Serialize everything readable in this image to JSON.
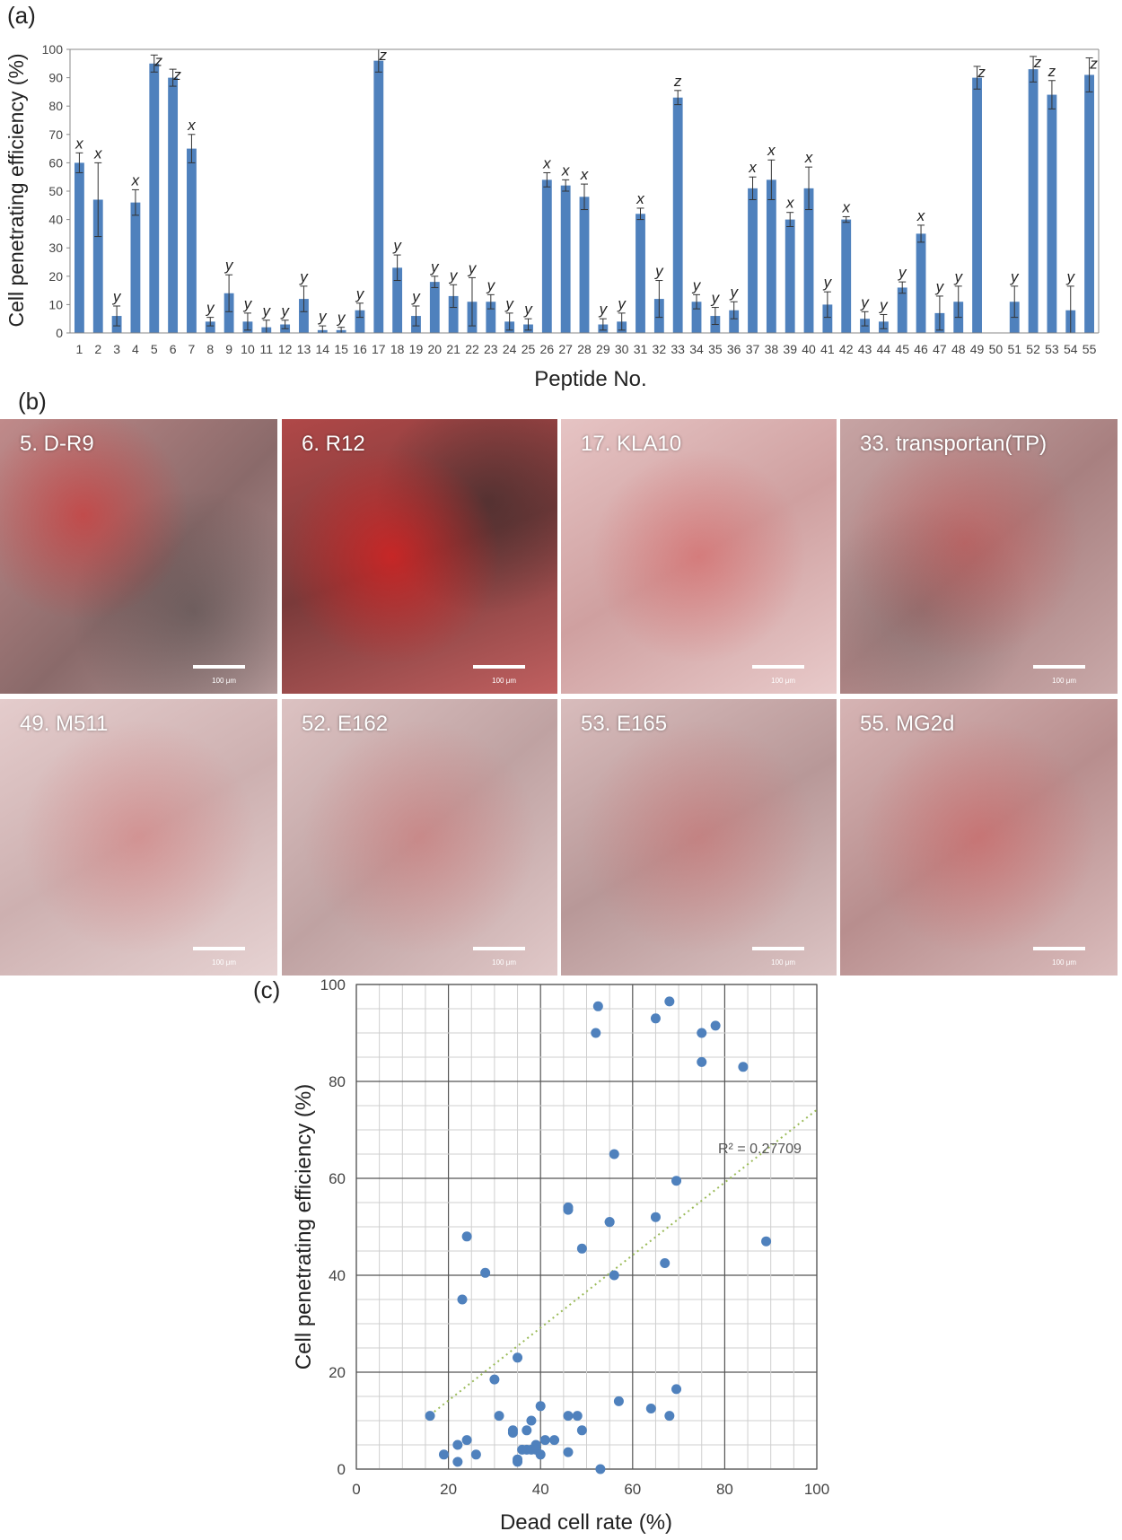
{
  "panels": {
    "a": "(a)",
    "b": "(b)",
    "c": "(c)"
  },
  "chart_data": [
    {
      "type": "bar",
      "id": "panel-a",
      "title": "",
      "xlabel": "Peptide No.",
      "ylabel": "Cell penetrating efficiency (%)",
      "ylim": [
        0,
        100
      ],
      "yticks": [
        "0",
        "10",
        "20",
        "30",
        "40",
        "50",
        "60",
        "70",
        "80",
        "90",
        "100"
      ],
      "grid": false,
      "color": "#4f81bd",
      "categories": [
        "1",
        "2",
        "3",
        "4",
        "5",
        "6",
        "7",
        "8",
        "9",
        "10",
        "11",
        "12",
        "13",
        "14",
        "15",
        "16",
        "17",
        "18",
        "19",
        "20",
        "21",
        "22",
        "23",
        "24",
        "25",
        "26",
        "27",
        "28",
        "29",
        "30",
        "31",
        "32",
        "33",
        "34",
        "35",
        "36",
        "37",
        "38",
        "39",
        "40",
        "41",
        "42",
        "43",
        "44",
        "45",
        "46",
        "47",
        "48",
        "49",
        "50",
        "51",
        "52",
        "53",
        "54",
        "55"
      ],
      "values": [
        60,
        47,
        6,
        46,
        95,
        90,
        65,
        4,
        14,
        4,
        2,
        3,
        12,
        1,
        1,
        8,
        96,
        23,
        6,
        18,
        13,
        11,
        11,
        4,
        3,
        54,
        52,
        48,
        3,
        4,
        42,
        12,
        83,
        11,
        6,
        8,
        51,
        54,
        40,
        51,
        10,
        40,
        5,
        4,
        16,
        35,
        7,
        11,
        90,
        0,
        11,
        93,
        84,
        8,
        91
      ],
      "errors": [
        3.5,
        13,
        3.5,
        4.5,
        3,
        3,
        5,
        1.5,
        6.5,
        3,
        2.5,
        1.5,
        4.5,
        1.5,
        1,
        2.5,
        4,
        4.5,
        3.5,
        2,
        4,
        8.5,
        2.5,
        3,
        2,
        2.5,
        2,
        4.5,
        2,
        3,
        2,
        6.5,
        2.5,
        2.5,
        3,
        3,
        4,
        7,
        2.5,
        7.5,
        4.5,
        1,
        2.5,
        2.5,
        2,
        3,
        6,
        5.5,
        4,
        0,
        5.5,
        4.5,
        5,
        8.5,
        6
      ],
      "groups": [
        "x",
        "x",
        "y",
        "x",
        "z",
        "z",
        "x",
        "y",
        "y",
        "y",
        "y",
        "y",
        "y",
        "y",
        "y",
        "y",
        "z",
        "y",
        "y",
        "y",
        "y",
        "y",
        "y",
        "y",
        "y",
        "x",
        "x",
        "x",
        "y",
        "y",
        "x",
        "y",
        "z",
        "y",
        "y",
        "y",
        "x",
        "x",
        "x",
        "x",
        "y",
        "x",
        "y",
        "y",
        "y",
        "x",
        "y",
        "y",
        "z",
        "",
        "y",
        "z",
        "z",
        "y",
        "z"
      ]
    },
    {
      "type": "scatter",
      "id": "panel-c",
      "title": "",
      "xlabel": "Dead cell rate (%)",
      "ylabel": "Cell penetrating efficiency (%)",
      "xlim": [
        0,
        100
      ],
      "ylim": [
        0,
        100
      ],
      "xticks": [
        "0",
        "20",
        "40",
        "60",
        "80",
        "100"
      ],
      "yticks": [
        "0",
        "20",
        "40",
        "60",
        "80",
        "100"
      ],
      "grid": true,
      "color": "#4f81bd",
      "trendline": {
        "slope": 0.75,
        "intercept": -0.85,
        "x_range": [
          16,
          100
        ],
        "color": "#9bbb59"
      },
      "annotation": "R² = 0.27709",
      "x": [
        52.5,
        52,
        65,
        68,
        75,
        78,
        75,
        84,
        56,
        69.5,
        46,
        46,
        55,
        55,
        65,
        49,
        67,
        56,
        24,
        28,
        89,
        23,
        35,
        16,
        30,
        31,
        19,
        22,
        22,
        24,
        26,
        34,
        34,
        35,
        35,
        36,
        37,
        37,
        38,
        38,
        39,
        39,
        40,
        40,
        41,
        43,
        46,
        46,
        48,
        49,
        53,
        57,
        64,
        68,
        69.5
      ],
      "y": [
        95.5,
        90,
        93,
        96.5,
        90,
        91.5,
        84,
        83,
        65,
        59.5,
        54,
        53.5,
        51,
        51,
        52,
        45.5,
        42.5,
        40,
        48,
        40.5,
        47,
        35,
        23,
        11,
        18.5,
        11,
        3,
        5,
        1.5,
        6,
        3,
        7.5,
        8,
        2,
        1.5,
        4,
        4,
        8,
        4,
        10,
        5,
        4,
        3,
        13,
        6,
        6,
        11,
        3.5,
        11,
        8,
        0,
        14,
        12.5,
        11,
        16.5
      ]
    }
  ],
  "micrographs": [
    {
      "label": "5. D-R9",
      "scale": "100 μm"
    },
    {
      "label": "6. R12",
      "scale": "100 μm"
    },
    {
      "label": "17. KLA10",
      "scale": "100 μm"
    },
    {
      "label": "33. transportan(TP)",
      "scale": "100 μm"
    },
    {
      "label": "49. M511",
      "scale": "100 μm"
    },
    {
      "label": "52. E162",
      "scale": "100 μm"
    },
    {
      "label": "53. E165",
      "scale": "100 μm"
    },
    {
      "label": "55. MG2d",
      "scale": "100 μm"
    }
  ]
}
